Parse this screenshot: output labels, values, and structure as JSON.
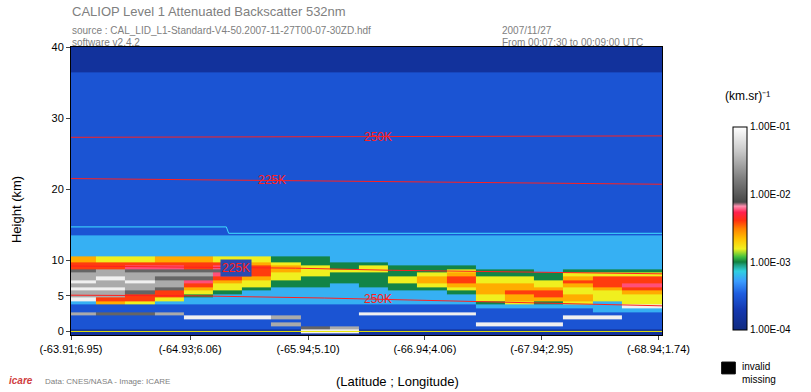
{
  "chart_data": {
    "type": "heatmap",
    "title": "CALIOP Level 1 Attenuated Backscatter 532nm",
    "subtitle": [
      "source : CAL_LID_L1-Standard-V4-50.2007-11-27T00-07-30ZD.hdf",
      "software v2.4.2"
    ],
    "date_lines": [
      "2007/11/27",
      "From 00:07:30 to 00:09:00 UTC"
    ],
    "credit": "Data: CNES/NASA - Image: ICARE",
    "logo": "icare",
    "x_label": "(Latitude ; Longitude)",
    "y_label": "Height (km)",
    "grid": false,
    "xlim": [
      -63.91,
      -68.97
    ],
    "xticks": [
      {
        "value": -63.91,
        "label": "(-63.91;6.95)"
      },
      {
        "value": -64.93,
        "label": "(-64.93;6.06)"
      },
      {
        "value": -65.94,
        "label": "(-65.94;5.10)"
      },
      {
        "value": -66.94,
        "label": "(-66.94;4.06)"
      },
      {
        "value": -67.94,
        "label": "(-67.94;2.95)"
      },
      {
        "value": -68.94,
        "label": "(-68.94;1.74)"
      }
    ],
    "ylim": [
      -0.5,
      40
    ],
    "yticks": [
      0,
      5,
      10,
      20,
      30,
      40
    ],
    "colorbar": {
      "title": "(km.sr)⁻¹",
      "range": [
        0.0001,
        0.1
      ],
      "ticks": [
        {
          "value": 0.0001,
          "label": "1.00E-04"
        },
        {
          "value": 0.001,
          "label": "1.00E-03"
        },
        {
          "value": 0.01,
          "label": "1.00E-02"
        },
        {
          "value": 0.1,
          "label": "1.00E-01"
        }
      ]
    },
    "missing_legend": [
      "invalid",
      "missing"
    ],
    "x": [
      -64.0,
      -64.25,
      -64.5,
      -64.75,
      -65.0,
      -65.25,
      -65.5,
      -65.75,
      -66.0,
      -66.25,
      -66.5,
      -66.75,
      -67.0,
      -67.25,
      -67.5,
      -67.75,
      -68.0,
      -68.25,
      -68.5,
      -68.75,
      -69.0
    ],
    "y": [
      -0.5,
      0,
      0.5,
      1,
      1.5,
      2,
      2.5,
      3,
      3.5,
      4,
      4.5,
      5,
      5.5,
      6,
      6.5,
      7,
      7.5,
      8,
      8.5,
      9,
      9.5,
      10,
      11,
      12,
      13,
      14,
      16,
      19,
      23,
      28,
      34,
      39
    ],
    "cells": [
      [
        0.00015,
        0.00015,
        0.00015,
        0.00015,
        0.00015,
        0.00015,
        0.00015,
        0.00015,
        0.00015,
        0.00015,
        0.00015,
        0.00015,
        0.00015,
        0.00015,
        0.00015,
        0.00015,
        0.00015,
        0.00015,
        0.00015,
        0.00015,
        0.00015
      ],
      [
        0.00015,
        0.00015,
        0.00015,
        0.00015,
        0.00015,
        0.00015,
        0.00015,
        0.00015,
        0.08,
        0.08,
        0.00015,
        0.00015,
        0.00015,
        0.00015,
        0.00015,
        0.00015,
        0.00015,
        0.00015,
        0.00015,
        0.00015,
        0.00015
      ],
      [
        0.0003,
        0.0003,
        0.0003,
        0.0003,
        0.0003,
        0.0003,
        0.0003,
        0.0003,
        0.012,
        0.03,
        0.0003,
        0.0003,
        0.0003,
        0.0003,
        0.0003,
        0.0003,
        0.0003,
        0.0003,
        0.0003,
        0.0003,
        0.0003
      ],
      [
        0.0003,
        0.0003,
        0.0003,
        0.0003,
        0.0003,
        0.0003,
        0.0003,
        0.03,
        0.0003,
        0.0003,
        0.0003,
        0.0003,
        0.0003,
        0.0003,
        0.08,
        0.08,
        0.08,
        0.0003,
        0.0003,
        0.0003,
        0.0003
      ],
      [
        0.0003,
        0.0003,
        0.0003,
        0.0003,
        0.0003,
        0.0003,
        0.0003,
        0.0003,
        0.0003,
        0.0003,
        0.0003,
        0.0003,
        0.0003,
        0.0003,
        0.0003,
        0.0003,
        0.0003,
        0.0003,
        0.0003,
        0.0003,
        0.0003
      ],
      [
        0.0003,
        0.0003,
        0.0003,
        0.0003,
        0.08,
        0.08,
        0.08,
        0.03,
        0.0003,
        0.0003,
        0.0003,
        0.0003,
        0.0003,
        0.0003,
        0.0003,
        0.0003,
        0.0003,
        0.08,
        0.08,
        0.0003,
        0.0003
      ],
      [
        0.03,
        0.012,
        0.012,
        0.03,
        0.0003,
        0.0003,
        0.0003,
        0.0003,
        0.0003,
        0.0003,
        0.08,
        0.08,
        0.08,
        0.08,
        0.0003,
        0.0003,
        0.0003,
        0.0003,
        0.0003,
        0.0003,
        0.0003
      ],
      [
        0.0003,
        0.0003,
        0.0003,
        0.0003,
        0.0003,
        0.0003,
        0.0003,
        0.0003,
        0.0003,
        0.0003,
        0.0003,
        0.0003,
        0.0003,
        0.0003,
        0.0003,
        0.0003,
        0.0003,
        0.0003,
        0.0006,
        0.0006,
        0.0006
      ],
      [
        0.0003,
        0.0003,
        0.0003,
        0.0003,
        0.0003,
        0.0003,
        0.0003,
        0.0003,
        0.0003,
        0.0003,
        0.0003,
        0.0003,
        0.0003,
        0.0003,
        0.0006,
        0.0006,
        0.0006,
        0.0006,
        0.0006,
        0.08,
        0.08
      ],
      [
        0.0006,
        0.0025,
        0.0016,
        0.0006,
        0.0006,
        0.0006,
        0.0006,
        0.0006,
        0.0006,
        0.0006,
        0.0006,
        0.0006,
        0.0006,
        0.0006,
        0.001,
        0.0016,
        0.001,
        0.0016,
        0.0006,
        0.0016,
        0.0016
      ],
      [
        0.08,
        0.004,
        0.004,
        0.0016,
        0.0006,
        0.0006,
        0.0006,
        0.0006,
        0.0006,
        0.0006,
        0.0006,
        0.0006,
        0.0006,
        0.0006,
        0.0016,
        0.0025,
        0.0025,
        0.0025,
        0.0016,
        0.0016,
        0.0016
      ],
      [
        0.03,
        0.03,
        0.004,
        0.004,
        0.001,
        0.0006,
        0.0006,
        0.0006,
        0.0006,
        0.0006,
        0.0006,
        0.0006,
        0.0006,
        0.0006,
        0.0016,
        0.0025,
        0.004,
        0.0025,
        0.0016,
        0.0016,
        0.0016
      ],
      [
        0.03,
        0.03,
        0.012,
        0.004,
        0.0016,
        0.001,
        0.0006,
        0.0006,
        0.0006,
        0.0006,
        0.0006,
        0.0006,
        0.0006,
        0.001,
        0.0025,
        0.004,
        0.004,
        0.0016,
        0.0016,
        0.0025,
        0.0025
      ],
      [
        0.08,
        0.08,
        0.03,
        0.012,
        0.0025,
        0.0016,
        0.001,
        0.0006,
        0.0006,
        0.0006,
        0.0006,
        0.001,
        0.001,
        0.0016,
        0.0025,
        0.0025,
        0.0025,
        0.0016,
        0.0025,
        0.004,
        0.004
      ],
      [
        0.03,
        0.03,
        0.03,
        0.03,
        0.004,
        0.0016,
        0.0016,
        0.001,
        0.001,
        0.0006,
        0.001,
        0.001,
        0.0016,
        0.0025,
        0.0025,
        0.0025,
        0.0016,
        0.0025,
        0.004,
        0.006,
        0.006
      ],
      [
        0.08,
        0.03,
        0.08,
        0.03,
        0.006,
        0.0025,
        0.0016,
        0.001,
        0.001,
        0.001,
        0.001,
        0.0016,
        0.0025,
        0.004,
        0.0016,
        0.0016,
        0.0016,
        0.004,
        0.004,
        0.004,
        0.004
      ],
      [
        0.03,
        0.08,
        0.03,
        0.012,
        0.012,
        0.004,
        0.0025,
        0.0016,
        0.001,
        0.001,
        0.001,
        0.0016,
        0.0025,
        0.004,
        0.0016,
        0.0016,
        0.001,
        0.0025,
        0.004,
        0.004,
        0.004
      ],
      [
        0.03,
        0.03,
        0.03,
        0.03,
        0.03,
        0.006,
        0.004,
        0.0016,
        0.0016,
        0.001,
        0.001,
        0.001,
        0.0016,
        0.0025,
        0.001,
        0.001,
        0.001,
        0.0016,
        0.0016,
        0.0016,
        0.0016
      ],
      [
        0.012,
        0.03,
        0.012,
        0.012,
        0.012,
        0.012,
        0.004,
        0.0025,
        0.0016,
        0.0016,
        0.0016,
        0.001,
        0.001,
        0.0016,
        0.001,
        0.001,
        0.0006,
        0.001,
        0.001,
        0.001,
        0.001
      ],
      [
        0.004,
        0.004,
        0.006,
        0.006,
        0.004,
        0.006,
        0.004,
        0.0025,
        0.0016,
        0.001,
        0.0016,
        0.001,
        0.001,
        0.001,
        0.0006,
        0.0006,
        0.0006,
        0.0006,
        0.0006,
        0.0006,
        0.0006
      ],
      [
        0.004,
        0.004,
        0.004,
        0.004,
        0.004,
        0.004,
        0.0025,
        0.0016,
        0.001,
        0.001,
        0.001,
        0.0006,
        0.0006,
        0.0006,
        0.0006,
        0.0006,
        0.0006,
        0.0006,
        0.0006,
        0.0006,
        0.0006
      ],
      [
        0.0025,
        0.0016,
        0.0016,
        0.0025,
        0.0025,
        0.0016,
        0.0016,
        0.001,
        0.001,
        0.0006,
        0.0006,
        0.0006,
        0.0006,
        0.0006,
        0.0006,
        0.0006,
        0.0006,
        0.0006,
        0.0006,
        0.0006,
        0.0006
      ],
      [
        0.0006,
        0.0006,
        0.0006,
        0.0006,
        0.0006,
        0.0006,
        0.0006,
        0.0006,
        0.0006,
        0.0006,
        0.0006,
        0.0006,
        0.0006,
        0.0006,
        0.0006,
        0.0006,
        0.0006,
        0.0006,
        0.0006,
        0.0006,
        0.0006
      ],
      [
        0.0006,
        0.0006,
        0.0006,
        0.0006,
        0.0006,
        0.0006,
        0.0006,
        0.0006,
        0.0006,
        0.0006,
        0.0006,
        0.0006,
        0.0006,
        0.0006,
        0.0006,
        0.0006,
        0.0006,
        0.0006,
        0.0006,
        0.0006,
        0.0006
      ],
      [
        0.0006,
        0.0006,
        0.0006,
        0.0006,
        0.0006,
        0.0006,
        0.0006,
        0.0006,
        0.0006,
        0.0006,
        0.0006,
        0.0006,
        0.0006,
        0.0006,
        0.0006,
        0.0006,
        0.0006,
        0.0006,
        0.0006,
        0.0006,
        0.0006
      ],
      [
        0.0003,
        0.0003,
        0.0003,
        0.0003,
        0.0003,
        0.0003,
        0.0003,
        0.0003,
        0.0003,
        0.0003,
        0.0003,
        0.0003,
        0.0003,
        0.0003,
        0.0003,
        0.0003,
        0.0003,
        0.0003,
        0.0003,
        0.0003,
        0.0003
      ],
      [
        0.0003,
        0.0003,
        0.0003,
        0.0003,
        0.0003,
        0.0003,
        0.0003,
        0.0003,
        0.0003,
        0.0003,
        0.0003,
        0.0003,
        0.0003,
        0.0003,
        0.0003,
        0.0003,
        0.0003,
        0.0003,
        0.0003,
        0.0003,
        0.0003
      ],
      [
        0.0003,
        0.0003,
        0.0003,
        0.0003,
        0.0003,
        0.0003,
        0.0003,
        0.0003,
        0.0003,
        0.0003,
        0.0003,
        0.0003,
        0.0003,
        0.0003,
        0.0003,
        0.0003,
        0.0003,
        0.0003,
        0.0003,
        0.0003,
        0.0003
      ],
      [
        0.0003,
        0.0003,
        0.0003,
        0.0003,
        0.0003,
        0.0003,
        0.0003,
        0.0003,
        0.0003,
        0.0003,
        0.0003,
        0.0003,
        0.0003,
        0.0003,
        0.0003,
        0.0003,
        0.0003,
        0.0003,
        0.0003,
        0.0003,
        0.0003
      ],
      [
        0.0003,
        0.0003,
        0.0003,
        0.0003,
        0.0003,
        0.0003,
        0.0003,
        0.0003,
        0.0003,
        0.0003,
        0.0003,
        0.0003,
        0.0003,
        0.0003,
        0.0003,
        0.0003,
        0.0003,
        0.0003,
        0.0003,
        0.0003,
        0.0003
      ],
      [
        0.0003,
        0.0003,
        0.0003,
        0.0003,
        0.0003,
        0.0003,
        0.0003,
        0.0003,
        0.0003,
        0.0003,
        0.0003,
        0.0003,
        0.0003,
        0.0003,
        0.0003,
        0.0003,
        0.0003,
        0.0003,
        0.0003,
        0.0003,
        0.0003
      ],
      [
        0.00015,
        0.00015,
        0.00015,
        0.00015,
        0.00015,
        0.00015,
        0.00015,
        0.00015,
        0.00015,
        0.00015,
        0.00015,
        0.00015,
        0.00015,
        0.00015,
        0.00015,
        0.00015,
        0.00015,
        0.00015,
        0.00015,
        0.00015,
        0.00015
      ]
    ],
    "lines": [
      {
        "label": "250K",
        "color": "#ff2020",
        "x": [
          -63.91,
          -68.97
        ],
        "y": [
          27.3,
          27.5
        ]
      },
      {
        "label": "225K",
        "color": "#ff2020",
        "x": [
          -63.91,
          -68.97
        ],
        "y": [
          21.5,
          20.7
        ]
      },
      {
        "label": "225K",
        "color": "#ff2020",
        "x": [
          -63.91,
          -64.99,
          -65.83,
          -66.66,
          -67.5,
          -68.34,
          -68.97
        ],
        "y": [
          9.2,
          9.0,
          8.9,
          8.6,
          8.4,
          8.2,
          8.1
        ]
      },
      {
        "label": "250K",
        "color": "#ff2020",
        "x": [
          -63.91,
          -64.99,
          -66.08,
          -67.08,
          -67.92,
          -68.97
        ],
        "y": [
          5.1,
          5.0,
          4.7,
          4.3,
          3.95,
          3.6
        ]
      },
      {
        "color": "#40e0ff",
        "x": [
          -63.91,
          -65.24,
          -65.26,
          -68.97
        ],
        "y": [
          14.7,
          14.7,
          13.8,
          13.8
        ]
      },
      {
        "color": "#e8e800",
        "x": [
          -63.91,
          -68.97
        ],
        "y": [
          0,
          0
        ]
      }
    ]
  }
}
